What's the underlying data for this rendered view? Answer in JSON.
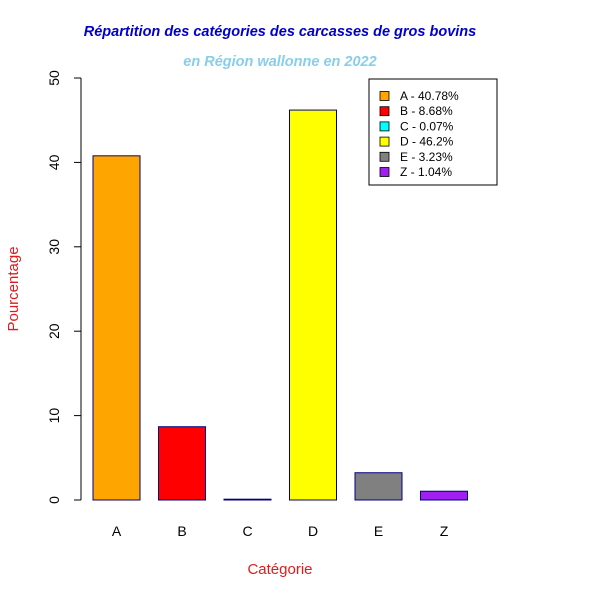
{
  "colors": {
    "title": "#0000CD",
    "subtitle": "#87CEEB",
    "axis_titles": "#E31A1C",
    "bar_border": "#000080"
  },
  "chart_data": {
    "type": "bar",
    "title": "Répartition des catégories des carcasses de gros bovins",
    "subtitle": "en Région wallonne en 2022",
    "xlabel": "Catégorie",
    "ylabel": "Pourcentage",
    "ylim": [
      0,
      50
    ],
    "yticks": [
      0,
      10,
      20,
      30,
      40,
      50
    ],
    "grid": false,
    "legend_position": "top-right",
    "categories": [
      "A",
      "B",
      "C",
      "D",
      "E",
      "Z"
    ],
    "values": [
      40.78,
      8.68,
      0.07,
      46.2,
      3.23,
      1.04
    ],
    "bar_colors": [
      "#FFA500",
      "#FF0000",
      "#00FFFF",
      "#FFFF00",
      "#808080",
      "#A020F0"
    ],
    "legend": [
      "A - 40.78%",
      "B - 8.68%",
      "C - 0.07%",
      "D - 46.2%",
      "E - 3.23%",
      "Z - 1.04%"
    ]
  }
}
